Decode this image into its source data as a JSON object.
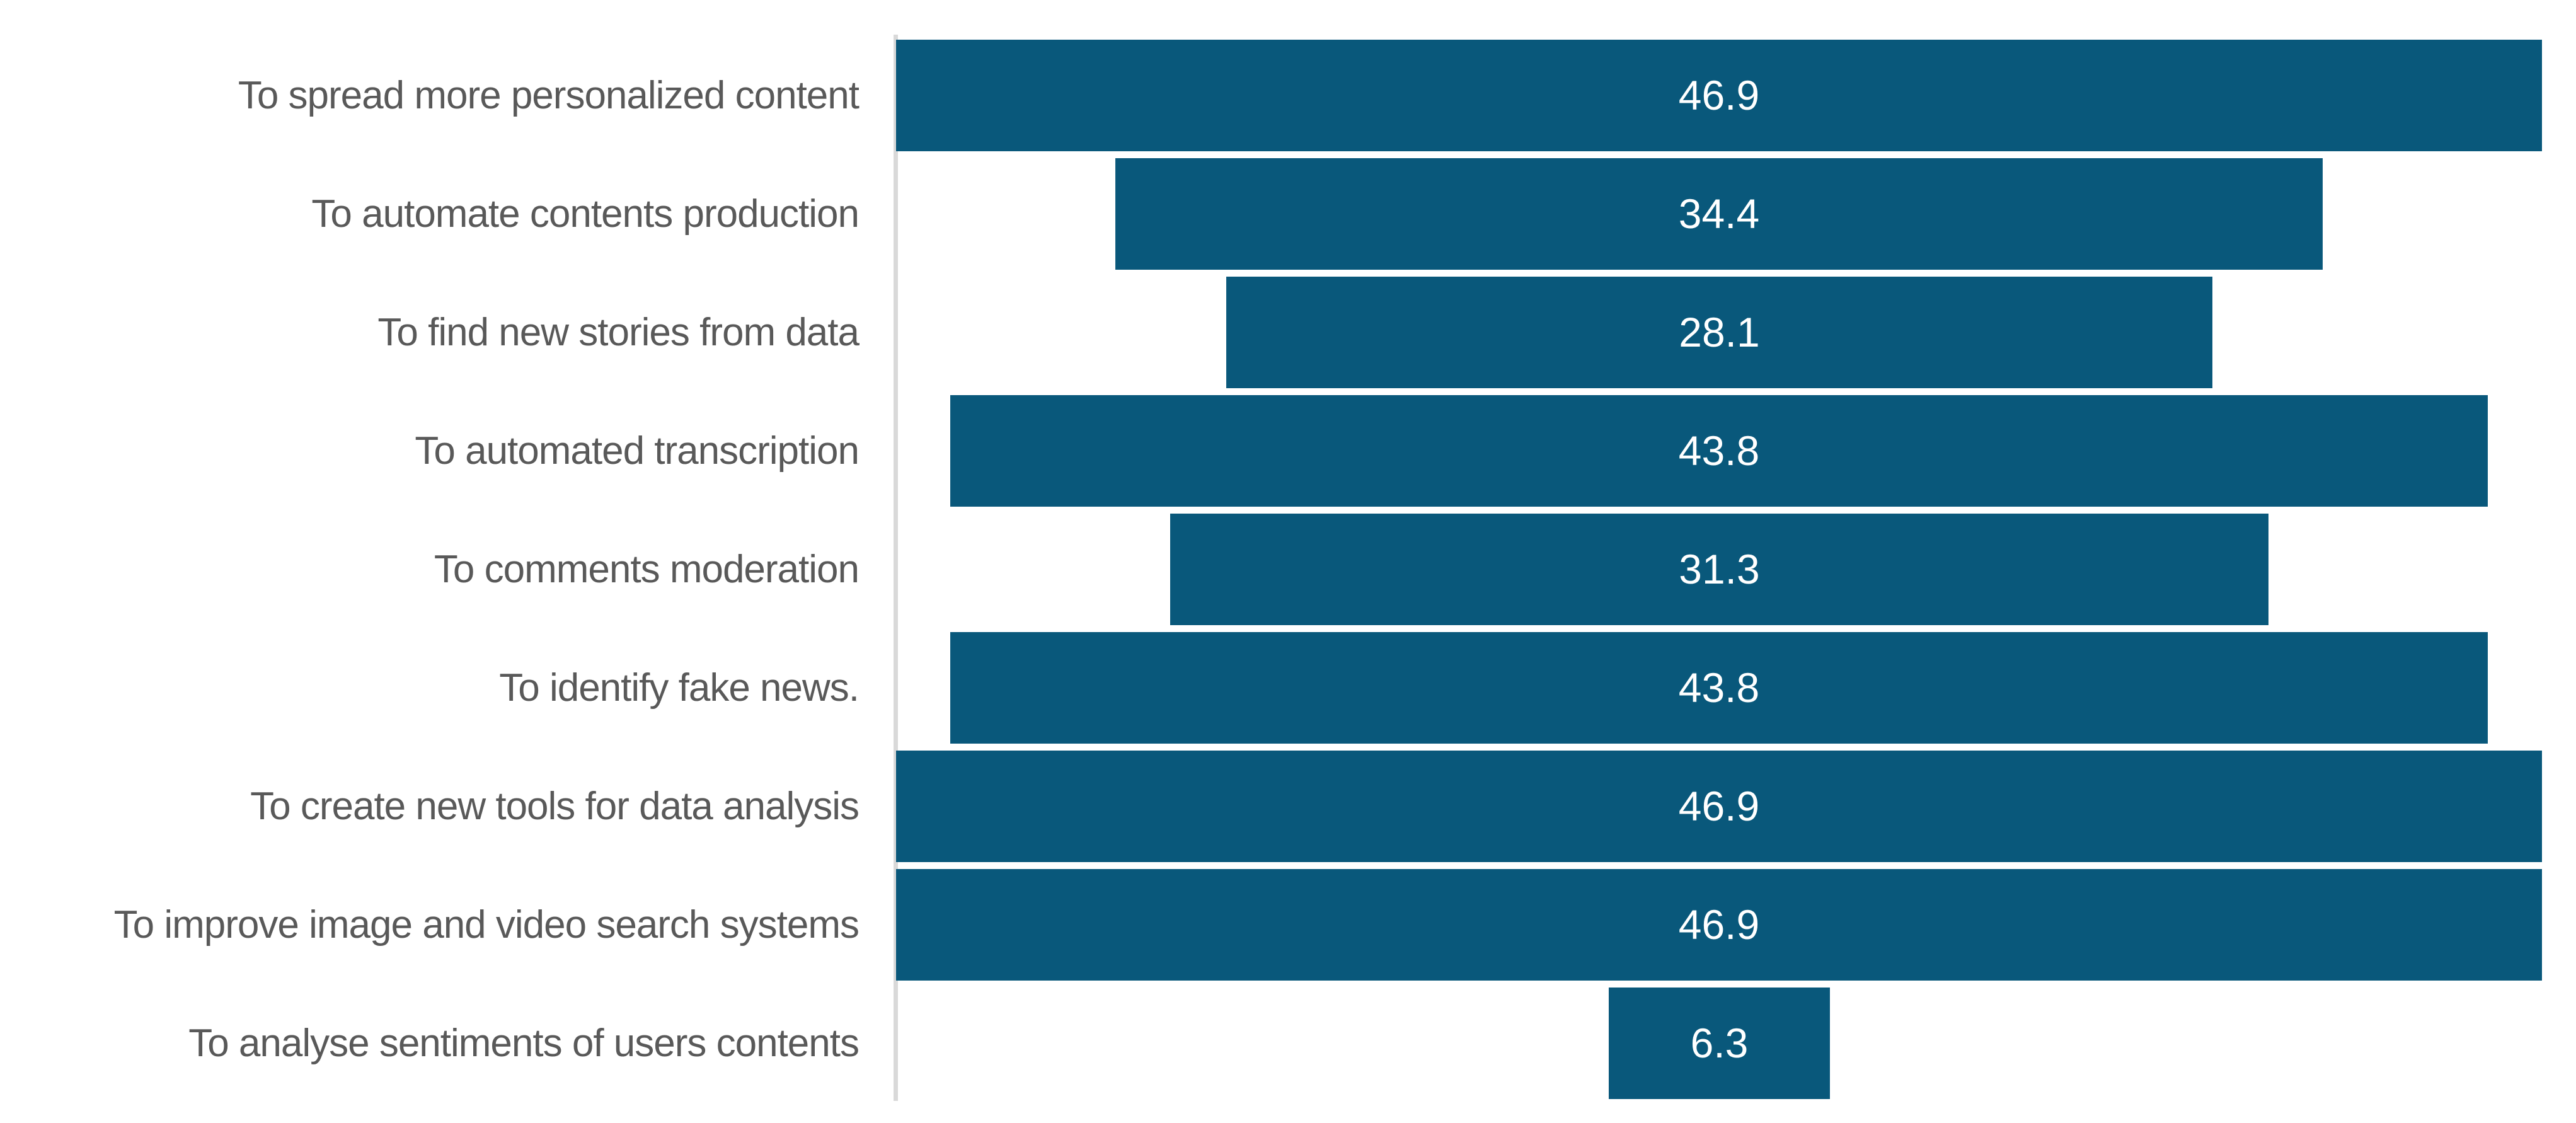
{
  "chart_data": {
    "type": "bar",
    "orientation": "horizontal",
    "bar_alignment": "centered",
    "title": "",
    "xlabel": "",
    "ylabel": "",
    "legend": "none",
    "gridlines": "off",
    "categories": [
      "To spread more personalized content",
      "To automate contents production",
      "To find new stories from data",
      "To automated transcription",
      "To comments moderation",
      "To identify fake news.",
      "To create new tools for data analysis",
      "To improve image and video search systems",
      "To analyse sentiments of users contents"
    ],
    "values": [
      46.9,
      34.4,
      28.1,
      43.8,
      31.3,
      43.8,
      46.9,
      46.9,
      6.3
    ],
    "value_labels": [
      "46.9",
      "34.4",
      "28.1",
      "43.8",
      "31.3",
      "43.8",
      "46.9",
      "46.9",
      "6.3"
    ],
    "value_range_units": [
      0,
      47.4
    ],
    "colors": {
      "bar": "#09587B",
      "category_label": "#595959",
      "value_label": "#FFFFFF",
      "axis_line": "#D9D9D9",
      "background": "#FFFFFF"
    }
  }
}
